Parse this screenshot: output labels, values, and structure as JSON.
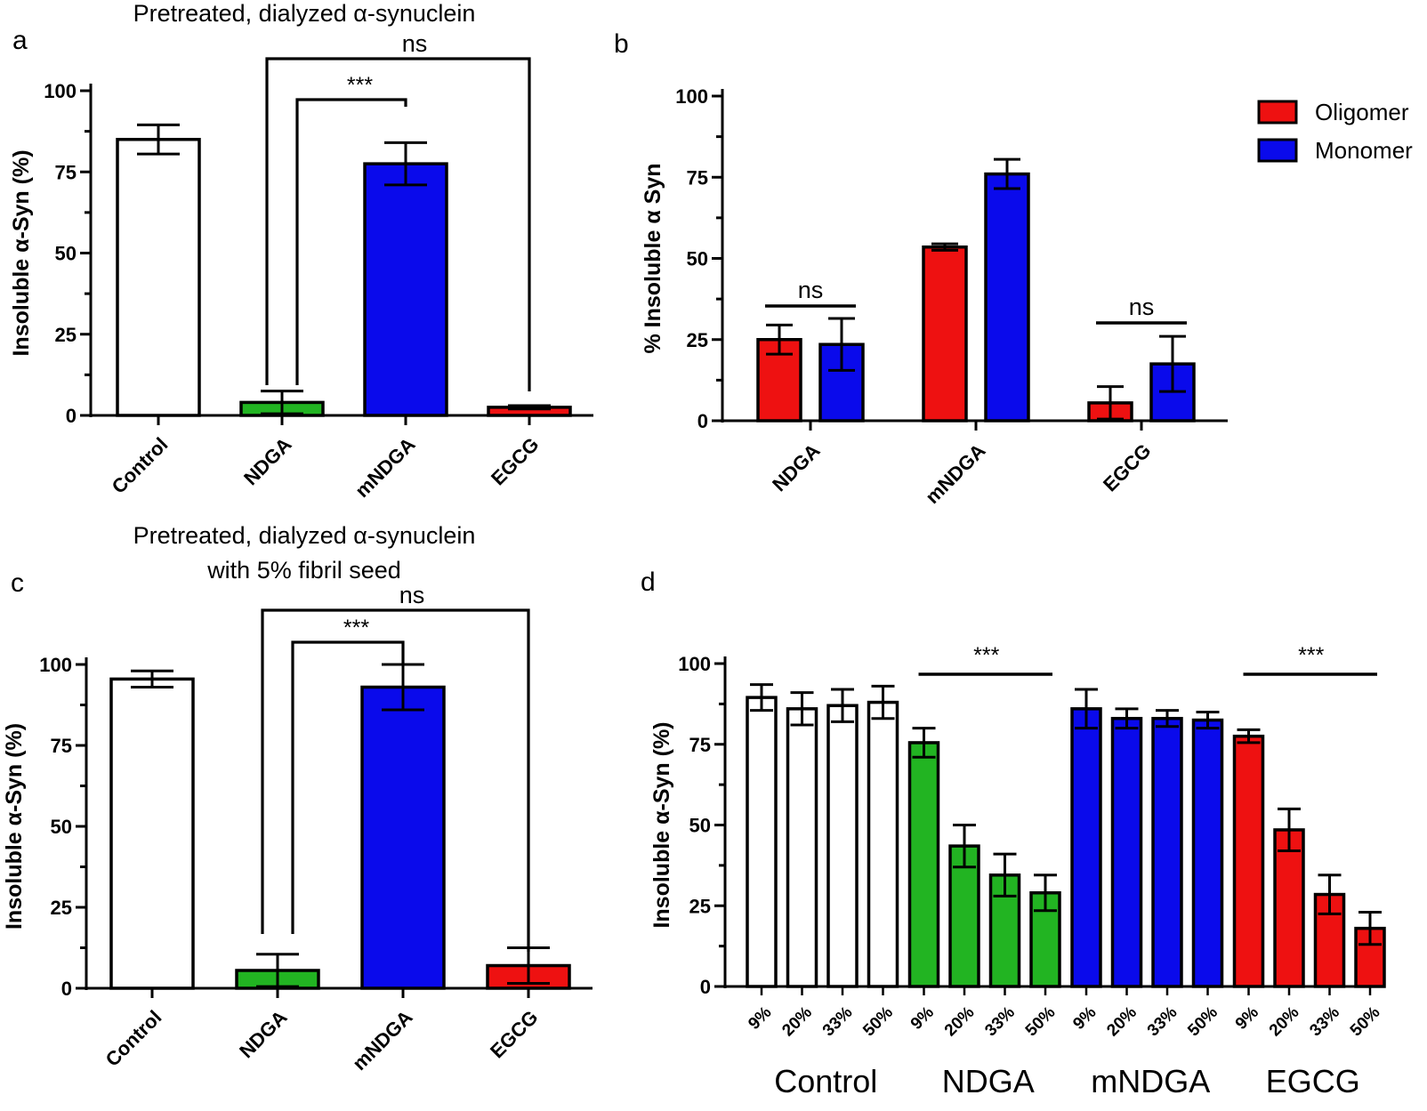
{
  "chart_data": [
    {
      "panel": "a",
      "type": "bar",
      "title": "Pretreated, dialyzed α-synuclein",
      "ylabel": "Insoluble α-Syn (%)",
      "categories": [
        "Control",
        "NDGA",
        "mNDGA",
        "EGCG"
      ],
      "values": [
        85,
        4,
        77.5,
        2.5
      ],
      "errors": [
        4.5,
        3.5,
        6.5,
        0.5
      ],
      "colors": [
        "#ffffff",
        "#22b422",
        "#0a0aeb",
        "#ee1111"
      ],
      "yticks": [
        "0",
        "25",
        "50",
        "75",
        "100"
      ],
      "ylim": [
        0,
        100
      ],
      "brackets": [
        {
          "from": "NDGA",
          "to": "EGCG",
          "label": "ns"
        },
        {
          "from": "NDGA",
          "to": "mNDGA",
          "label": "***"
        }
      ]
    },
    {
      "panel": "b",
      "type": "bar",
      "ylabel": "% Insoluble α Syn",
      "categories": [
        "NDGA",
        "mNDGA",
        "EGCG"
      ],
      "series": [
        {
          "name": "Oligomer",
          "color": "#ee1111",
          "values": [
            25,
            53.5,
            5.5
          ],
          "errors": [
            4.5,
            1,
            5
          ]
        },
        {
          "name": "Monomer",
          "color": "#0a0aeb",
          "values": [
            23.5,
            76,
            17.5
          ],
          "errors": [
            8,
            4.5,
            8.5
          ]
        }
      ],
      "yticks": [
        "0",
        "25",
        "50",
        "75",
        "100"
      ],
      "ylim": [
        0,
        100
      ],
      "annotations": [
        {
          "category": "NDGA",
          "label": "ns"
        },
        {
          "category": "EGCG",
          "label": "ns"
        }
      ],
      "legend": "top-right"
    },
    {
      "panel": "c",
      "type": "bar",
      "title": "Pretreated, dialyzed α-synuclein",
      "subtitle": "with 5% fibril seed",
      "ylabel": "Insoluble α-Syn (%)",
      "categories": [
        "Control",
        "NDGA",
        "mNDGA",
        "EGCG"
      ],
      "values": [
        95.5,
        5.5,
        93,
        7
      ],
      "errors": [
        2.5,
        5,
        7,
        5.5
      ],
      "colors": [
        "#ffffff",
        "#22b422",
        "#0a0aeb",
        "#ee1111"
      ],
      "yticks": [
        "0",
        "25",
        "50",
        "75",
        "100"
      ],
      "ylim": [
        0,
        100
      ],
      "brackets": [
        {
          "from": "NDGA",
          "to": "EGCG",
          "label": "ns"
        },
        {
          "from": "NDGA",
          "to": "mNDGA",
          "label": "***"
        }
      ]
    },
    {
      "panel": "d",
      "type": "bar",
      "ylabel": "Insoluble α-Syn (%)",
      "groups": [
        "Control",
        "NDGA",
        "mNDGA",
        "EGCG"
      ],
      "subcategories": [
        "9%",
        "20%",
        "33%",
        "50%"
      ],
      "colors": [
        "#ffffff",
        "#22b422",
        "#0a0aeb",
        "#ee1111"
      ],
      "values": [
        [
          89.5,
          86,
          87,
          88
        ],
        [
          75.5,
          43.5,
          34.5,
          29
        ],
        [
          86,
          83,
          83,
          82.5
        ],
        [
          77.5,
          48.5,
          28.5,
          18
        ]
      ],
      "errors": [
        [
          4,
          5,
          5,
          5
        ],
        [
          4.5,
          6.5,
          6.5,
          5.5
        ],
        [
          6,
          3,
          2.5,
          2.5
        ],
        [
          2,
          6.5,
          6,
          5
        ]
      ],
      "yticks": [
        "0",
        "25",
        "50",
        "75",
        "100"
      ],
      "ylim": [
        0,
        100
      ],
      "annotations": [
        {
          "group": "NDGA",
          "label": "***"
        },
        {
          "group": "EGCG",
          "label": "***"
        }
      ]
    }
  ]
}
